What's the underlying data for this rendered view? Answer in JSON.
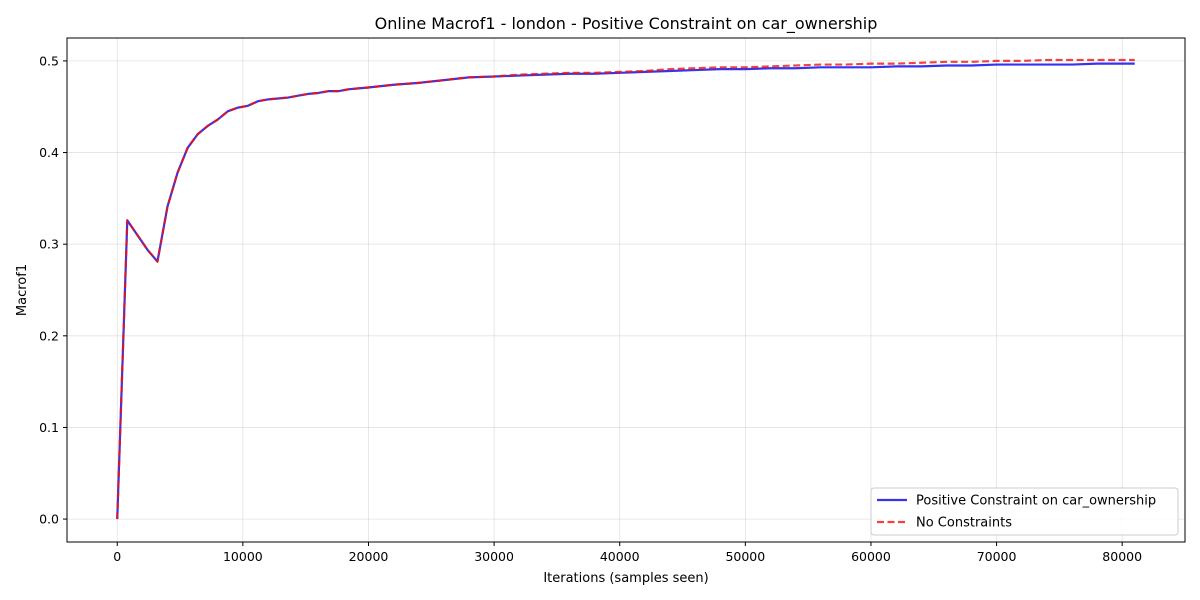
{
  "chart_data": {
    "type": "line",
    "title": "Online Macrof1 - london - Positive Constraint on car_ownership",
    "xlabel": "Iterations (samples seen)",
    "ylabel": "Macrof1",
    "xlim": [
      -4000,
      85000
    ],
    "ylim": [
      -0.025,
      0.525
    ],
    "xticks": [
      0,
      10000,
      20000,
      30000,
      40000,
      50000,
      60000,
      70000,
      80000
    ],
    "yticks": [
      0.0,
      0.1,
      0.2,
      0.3,
      0.4,
      0.5
    ],
    "xtick_labels": [
      "0",
      "10000",
      "20000",
      "30000",
      "40000",
      "50000",
      "60000",
      "70000",
      "80000"
    ],
    "ytick_labels": [
      "0.0",
      "0.1",
      "0.2",
      "0.3",
      "0.4",
      "0.5"
    ],
    "grid": true,
    "legend_position": "lower-right",
    "series": [
      {
        "name": "Positive Constraint on car_ownership",
        "color": "#0000ee",
        "style": "solid",
        "x": [
          0,
          800,
          1600,
          2400,
          3200,
          4000,
          4800,
          5600,
          6400,
          7200,
          8000,
          8800,
          9600,
          10400,
          11200,
          12000,
          12800,
          13600,
          14400,
          15200,
          16000,
          16800,
          17600,
          18400,
          19200,
          20000,
          22000,
          24000,
          26000,
          28000,
          30000,
          32000,
          34000,
          36000,
          38000,
          40000,
          42000,
          44000,
          46000,
          48000,
          50000,
          52000,
          54000,
          56000,
          58000,
          60000,
          62000,
          64000,
          66000,
          68000,
          70000,
          72000,
          74000,
          76000,
          78000,
          80000,
          81000
        ],
        "y": [
          0.0,
          0.326,
          0.31,
          0.294,
          0.281,
          0.341,
          0.378,
          0.405,
          0.42,
          0.429,
          0.436,
          0.445,
          0.449,
          0.451,
          0.456,
          0.458,
          0.459,
          0.46,
          0.462,
          0.464,
          0.465,
          0.467,
          0.467,
          0.469,
          0.47,
          0.471,
          0.474,
          0.476,
          0.479,
          0.482,
          0.483,
          0.484,
          0.485,
          0.486,
          0.486,
          0.487,
          0.488,
          0.489,
          0.49,
          0.491,
          0.491,
          0.492,
          0.492,
          0.493,
          0.493,
          0.493,
          0.494,
          0.494,
          0.495,
          0.495,
          0.496,
          0.496,
          0.496,
          0.496,
          0.497,
          0.497,
          0.497
        ]
      },
      {
        "name": "No Constraints",
        "color": "#ee1111",
        "style": "dashed",
        "x": [
          0,
          800,
          1600,
          2400,
          3200,
          4000,
          4800,
          5600,
          6400,
          7200,
          8000,
          8800,
          9600,
          10400,
          11200,
          12000,
          12800,
          13600,
          14400,
          15200,
          16000,
          16800,
          17600,
          18400,
          19200,
          20000,
          22000,
          24000,
          26000,
          28000,
          30000,
          32000,
          34000,
          36000,
          38000,
          40000,
          42000,
          44000,
          46000,
          48000,
          50000,
          52000,
          54000,
          56000,
          58000,
          60000,
          62000,
          64000,
          66000,
          68000,
          70000,
          72000,
          74000,
          76000,
          78000,
          80000,
          81000
        ],
        "y": [
          0.0,
          0.326,
          0.31,
          0.294,
          0.281,
          0.341,
          0.378,
          0.405,
          0.42,
          0.429,
          0.436,
          0.445,
          0.449,
          0.451,
          0.456,
          0.458,
          0.459,
          0.46,
          0.462,
          0.464,
          0.465,
          0.467,
          0.467,
          0.469,
          0.47,
          0.471,
          0.474,
          0.476,
          0.479,
          0.482,
          0.483,
          0.485,
          0.486,
          0.487,
          0.487,
          0.488,
          0.489,
          0.491,
          0.492,
          0.493,
          0.493,
          0.494,
          0.495,
          0.496,
          0.496,
          0.497,
          0.497,
          0.498,
          0.499,
          0.499,
          0.5,
          0.5,
          0.501,
          0.501,
          0.501,
          0.501,
          0.501
        ]
      }
    ]
  }
}
